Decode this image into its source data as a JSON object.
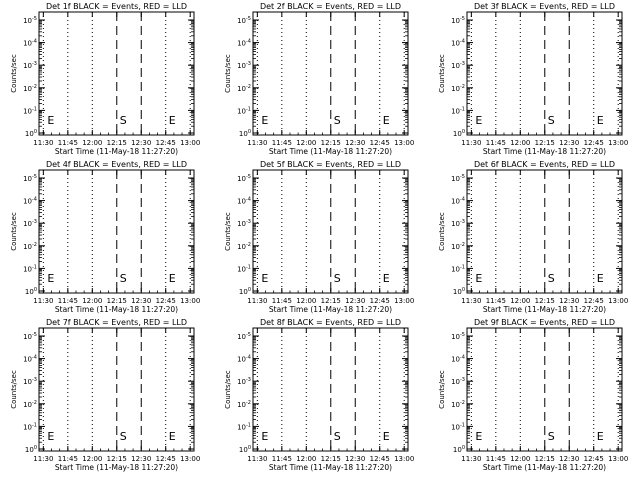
{
  "chart_data": [
    {
      "type": "line",
      "title": "Det 1f BLACK = Events, RED = LLD",
      "xlabel": "Start Time (11-May-18 11:27:20)",
      "ylabel": "Counts/sec",
      "x_ticks": [
        "11:30",
        "11:45",
        "12:00",
        "12:15",
        "12:30",
        "12:45",
        "13:00"
      ],
      "y_ticks": [
        "10^0",
        "10^-1",
        "10^-2",
        "10^-3",
        "10^-4",
        "10^-5"
      ],
      "y_scale": "log",
      "markers": [
        {
          "label": "E",
          "time": "11:30"
        },
        {
          "label": "S",
          "time": "12:15"
        },
        {
          "label": "E",
          "time": "12:45"
        }
      ],
      "series": []
    },
    {
      "type": "line",
      "title": "Det 2f BLACK = Events, RED = LLD",
      "xlabel": "Start Time (11-May-18 11:27:20)",
      "ylabel": "Counts/sec",
      "x_ticks": [
        "11:30",
        "11:45",
        "12:00",
        "12:15",
        "12:30",
        "12:45",
        "13:00"
      ],
      "y_ticks": [
        "10^0",
        "10^-1",
        "10^-2",
        "10^-3",
        "10^-4",
        "10^-5"
      ],
      "y_scale": "log",
      "markers": [
        {
          "label": "E",
          "time": "11:30"
        },
        {
          "label": "S",
          "time": "12:15"
        },
        {
          "label": "E",
          "time": "12:45"
        }
      ],
      "series": []
    },
    {
      "type": "line",
      "title": "Det 3f BLACK = Events, RED = LLD",
      "xlabel": "Start Time (11-May-18 11:27:20)",
      "ylabel": "Counts/sec",
      "x_ticks": [
        "11:30",
        "11:45",
        "12:00",
        "12:15",
        "12:30",
        "12:45",
        "13:00"
      ],
      "y_ticks": [
        "10^0",
        "10^-1",
        "10^-2",
        "10^-3",
        "10^-4",
        "10^-5"
      ],
      "y_scale": "log",
      "markers": [
        {
          "label": "E",
          "time": "11:30"
        },
        {
          "label": "S",
          "time": "12:15"
        },
        {
          "label": "E",
          "time": "12:45"
        }
      ],
      "series": []
    },
    {
      "type": "line",
      "title": "Det 4f BLACK = Events, RED = LLD",
      "xlabel": "Start Time (11-May-18 11:27:20)",
      "ylabel": "Counts/sec",
      "x_ticks": [
        "11:30",
        "11:45",
        "12:00",
        "12:15",
        "12:30",
        "12:45",
        "13:00"
      ],
      "y_ticks": [
        "10^0",
        "10^-1",
        "10^-2",
        "10^-3",
        "10^-4",
        "10^-5"
      ],
      "y_scale": "log",
      "markers": [
        {
          "label": "E",
          "time": "11:30"
        },
        {
          "label": "S",
          "time": "12:15"
        },
        {
          "label": "E",
          "time": "12:45"
        }
      ],
      "series": []
    },
    {
      "type": "line",
      "title": "Det 5f BLACK = Events, RED = LLD",
      "xlabel": "Start Time (11-May-18 11:27:20)",
      "ylabel": "Counts/sec",
      "x_ticks": [
        "11:30",
        "11:45",
        "12:00",
        "12:15",
        "12:30",
        "12:45",
        "13:00"
      ],
      "y_ticks": [
        "10^0",
        "10^-1",
        "10^-2",
        "10^-3",
        "10^-4",
        "10^-5"
      ],
      "y_scale": "log",
      "markers": [
        {
          "label": "E",
          "time": "11:30"
        },
        {
          "label": "S",
          "time": "12:15"
        },
        {
          "label": "E",
          "time": "12:45"
        }
      ],
      "series": []
    },
    {
      "type": "line",
      "title": "Det 6f BLACK = Events, RED = LLD",
      "xlabel": "Start Time (11-May-18 11:27:20)",
      "ylabel": "Counts/sec",
      "x_ticks": [
        "11:30",
        "11:45",
        "12:00",
        "12:15",
        "12:30",
        "12:45",
        "13:00"
      ],
      "y_ticks": [
        "10^0",
        "10^-1",
        "10^-2",
        "10^-3",
        "10^-4",
        "10^-5"
      ],
      "y_scale": "log",
      "markers": [
        {
          "label": "E",
          "time": "11:30"
        },
        {
          "label": "S",
          "time": "12:15"
        },
        {
          "label": "E",
          "time": "12:45"
        }
      ],
      "series": []
    },
    {
      "type": "line",
      "title": "Det 7f BLACK = Events, RED = LLD",
      "xlabel": "Start Time (11-May-18 11:27:20)",
      "ylabel": "Counts/sec",
      "x_ticks": [
        "11:30",
        "11:45",
        "12:00",
        "12:15",
        "12:30",
        "12:45",
        "13:00"
      ],
      "y_ticks": [
        "10^0",
        "10^-1",
        "10^-2",
        "10^-3",
        "10^-4",
        "10^-5"
      ],
      "y_scale": "log",
      "markers": [
        {
          "label": "E",
          "time": "11:30"
        },
        {
          "label": "S",
          "time": "12:15"
        },
        {
          "label": "E",
          "time": "12:45"
        }
      ],
      "series": []
    },
    {
      "type": "line",
      "title": "Det 8f BLACK = Events, RED = LLD",
      "xlabel": "Start Time (11-May-18 11:27:20)",
      "ylabel": "Counts/sec",
      "x_ticks": [
        "11:30",
        "11:45",
        "12:00",
        "12:15",
        "12:30",
        "12:45",
        "13:00"
      ],
      "y_ticks": [
        "10^0",
        "10^-1",
        "10^-2",
        "10^-3",
        "10^-4",
        "10^-5"
      ],
      "y_scale": "log",
      "markers": [
        {
          "label": "E",
          "time": "11:30"
        },
        {
          "label": "S",
          "time": "12:15"
        },
        {
          "label": "E",
          "time": "12:45"
        }
      ],
      "series": []
    },
    {
      "type": "line",
      "title": "Det 9f BLACK = Events, RED = LLD",
      "xlabel": "Start Time (11-May-18 11:27:20)",
      "ylabel": "Counts/sec",
      "x_ticks": [
        "11:30",
        "11:45",
        "12:00",
        "12:15",
        "12:30",
        "12:45",
        "13:00"
      ],
      "y_ticks": [
        "10^0",
        "10^-1",
        "10^-2",
        "10^-3",
        "10^-4",
        "10^-5"
      ],
      "y_scale": "log",
      "markers": [
        {
          "label": "E",
          "time": "11:30"
        },
        {
          "label": "S",
          "time": "12:15"
        },
        {
          "label": "E",
          "time": "12:45"
        }
      ],
      "series": []
    }
  ]
}
